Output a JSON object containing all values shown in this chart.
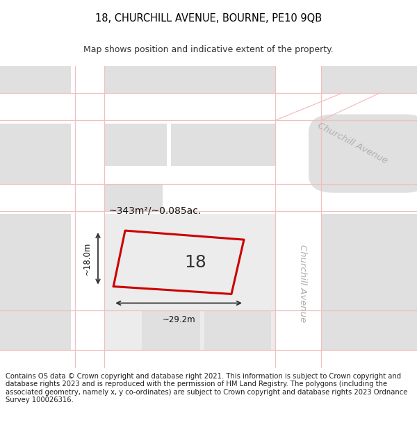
{
  "title": "18, CHURCHILL AVENUE, BOURNE, PE10 9QB",
  "subtitle": "Map shows position and indicative extent of the property.",
  "footer": "Contains OS data © Crown copyright and database right 2021. This information is subject to Crown copyright and database rights 2023 and is reproduced with the permission of HM Land Registry. The polygons (including the associated geometry, namely x, y co-ordinates) are subject to Crown copyright and database rights 2023 Ordnance Survey 100026316.",
  "area_label": "~343m²/~0.085ac.",
  "width_label": "~29.2m",
  "height_label": "~18.0m",
  "number_label": "18",
  "title_fontsize": 10.5,
  "subtitle_fontsize": 9,
  "footer_fontsize": 7.2,
  "map_bg": "#f5f5f5",
  "block_color": "#e0e0e0",
  "road_color": "#ffffff",
  "pink": "#f0c0c0",
  "red": "#cc0000",
  "dark": "#222222",
  "street_gray": "#b0b0b0"
}
